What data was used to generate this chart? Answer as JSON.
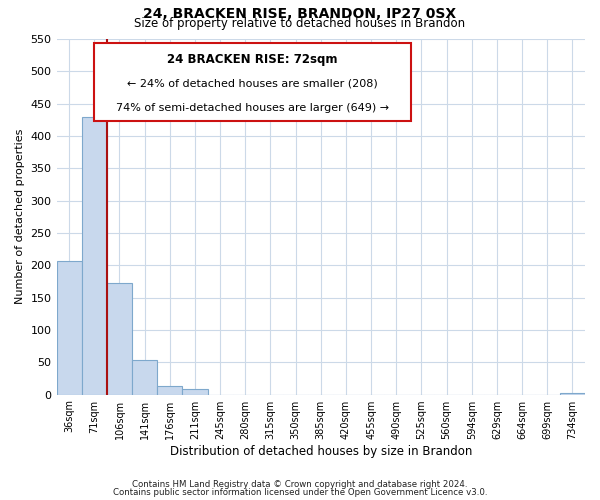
{
  "title": "24, BRACKEN RISE, BRANDON, IP27 0SX",
  "subtitle": "Size of property relative to detached houses in Brandon",
  "xlabel": "Distribution of detached houses by size in Brandon",
  "ylabel": "Number of detached properties",
  "bar_labels": [
    "36sqm",
    "71sqm",
    "106sqm",
    "141sqm",
    "176sqm",
    "211sqm",
    "245sqm",
    "280sqm",
    "315sqm",
    "350sqm",
    "385sqm",
    "420sqm",
    "455sqm",
    "490sqm",
    "525sqm",
    "560sqm",
    "594sqm",
    "629sqm",
    "664sqm",
    "699sqm",
    "734sqm"
  ],
  "bar_values": [
    207,
    430,
    172,
    53,
    13,
    9,
    0,
    0,
    0,
    0,
    0,
    0,
    0,
    0,
    0,
    0,
    0,
    0,
    0,
    0,
    3
  ],
  "bar_color": "#c8d8ed",
  "bar_edge_color": "#7ea8cc",
  "ylim": [
    0,
    550
  ],
  "yticks": [
    0,
    50,
    100,
    150,
    200,
    250,
    300,
    350,
    400,
    450,
    500,
    550
  ],
  "vline_index": 1,
  "vline_color": "#aa1111",
  "anno_line1": "24 BRACKEN RISE: 72sqm",
  "anno_line2": "← 24% of detached houses are smaller (208)",
  "anno_line3": "74% of semi-detached houses are larger (649) →",
  "footer_line1": "Contains HM Land Registry data © Crown copyright and database right 2024.",
  "footer_line2": "Contains public sector information licensed under the Open Government Licence v3.0.",
  "background_color": "#ffffff",
  "grid_color": "#ccd9e8"
}
